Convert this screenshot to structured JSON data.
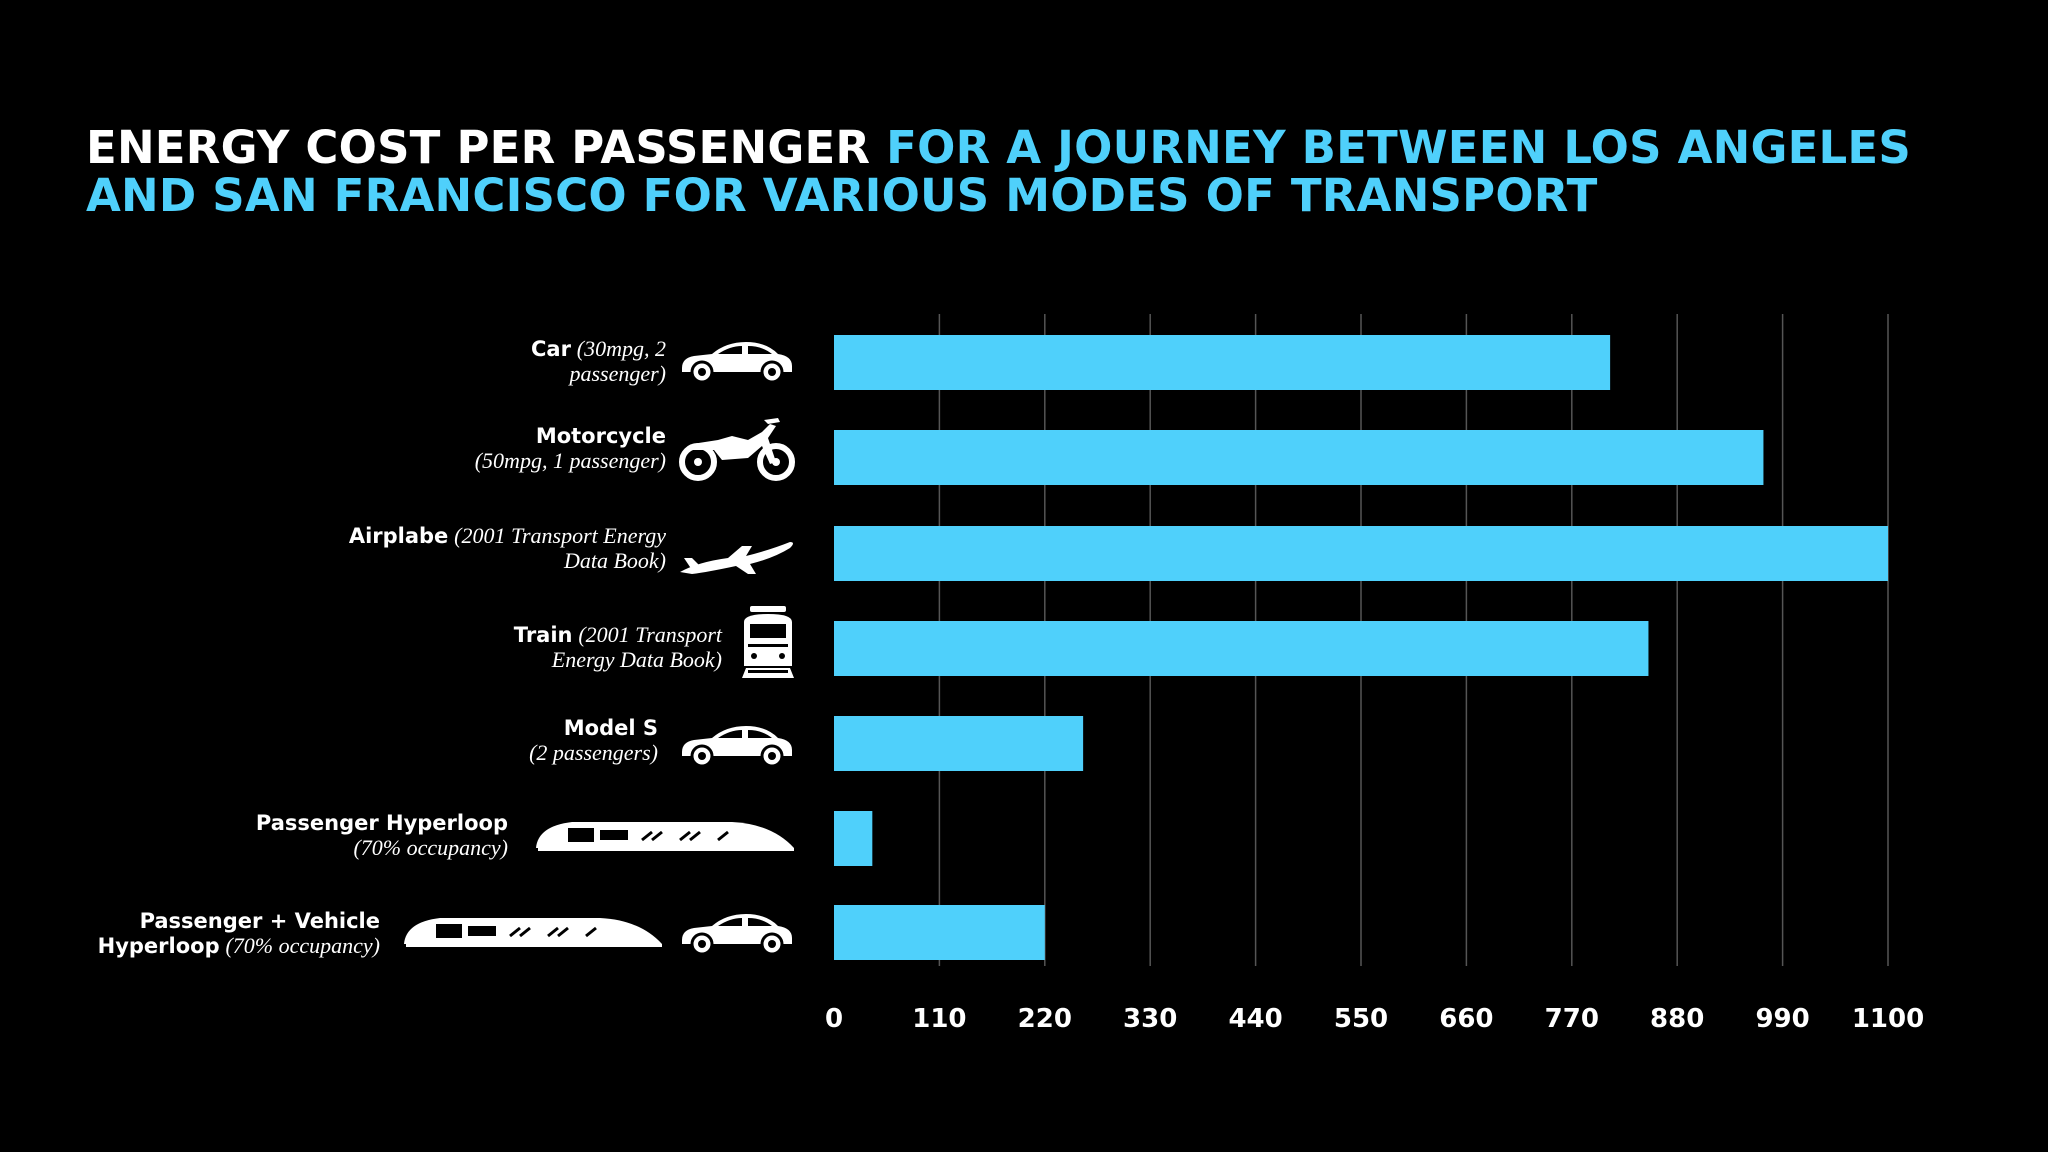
{
  "title": {
    "part1": "ENERGY COST PER PASSENGER",
    "part2": "FOR A JOURNEY BETWEEN LOS ANGELES AND SAN FRANCISCO FOR VARIOUS MODES OF TRANSPORT"
  },
  "colors": {
    "accent": "#4fd0fb",
    "background": "#000000",
    "text": "#ffffff",
    "grid": "#555555"
  },
  "rows": [
    {
      "name": "Car",
      "detail": "(30mpg, 2 passenger)",
      "icons": [
        "car-icon"
      ]
    },
    {
      "name": "Motorcycle",
      "detail": "(50mpg, 1 passenger)",
      "icons": [
        "motorcycle-icon"
      ]
    },
    {
      "name": "Airplabe",
      "detail": "(2001 Transport Energy Data Book)",
      "icons": [
        "airplane-icon"
      ]
    },
    {
      "name": "Train",
      "detail": "(2001 Transport Energy Data Book)",
      "icons": [
        "train-icon"
      ]
    },
    {
      "name": "Model S",
      "detail": "(2 passengers)",
      "icons": [
        "car-icon"
      ]
    },
    {
      "name": "Passenger Hyperloop",
      "detail": "(70% occupancy)",
      "icons": [
        "hyperloop-icon"
      ]
    },
    {
      "name": "Passenger + Vehicle Hyperloop",
      "detail": "(70% occupancy)",
      "icons": [
        "hyperloop-icon",
        "car-icon"
      ]
    }
  ],
  "chart_data": {
    "type": "bar",
    "orientation": "horizontal",
    "categories": [
      "Car",
      "Motorcycle",
      "Airplabe",
      "Train",
      "Model S",
      "Passenger Hyperloop",
      "Passenger + Vehicle Hyperloop"
    ],
    "values": [
      810,
      970,
      1100,
      850,
      260,
      40,
      220
    ],
    "xlim": [
      0,
      1100
    ],
    "xticks": [
      "0",
      "110",
      "220",
      "330",
      "440",
      "550",
      "660",
      "770",
      "880",
      "990",
      "1100"
    ],
    "grid": "vertical",
    "bar_color": "#4fd0fb"
  }
}
